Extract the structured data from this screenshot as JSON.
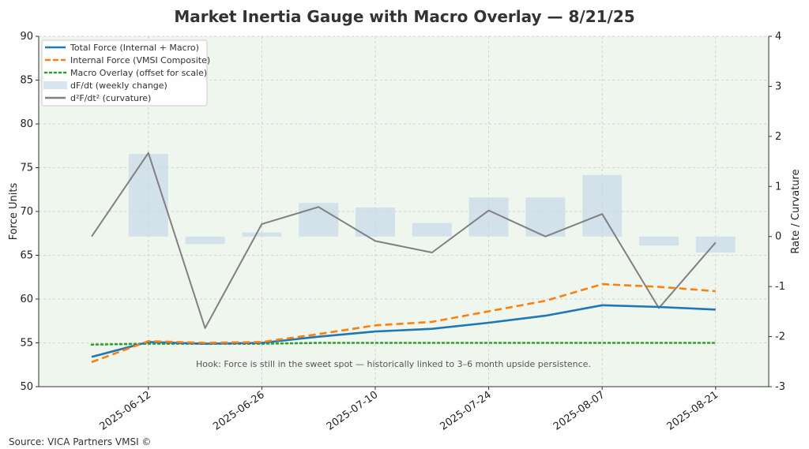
{
  "chart_data": {
    "type": "line",
    "title": "Market Inertia Gauge with Macro Overlay — 8/21/25",
    "ylabel": "Force Units",
    "y2label": "Rate / Curvature",
    "xlabel": "",
    "x": [
      "2025-06-05",
      "2025-06-12",
      "2025-06-19",
      "2025-06-26",
      "2025-07-03",
      "2025-07-10",
      "2025-07-17",
      "2025-07-24",
      "2025-07-31",
      "2025-08-07",
      "2025-08-14",
      "2025-08-21"
    ],
    "x_tick_labels": [
      "2025-06-12",
      "2025-06-26",
      "2025-07-10",
      "2025-07-24",
      "2025-08-07",
      "2025-08-21"
    ],
    "ylim": [
      50,
      90
    ],
    "y_ticks": [
      50,
      55,
      60,
      65,
      70,
      75,
      80,
      85,
      90
    ],
    "y2lim": [
      -3,
      4
    ],
    "y2_ticks": [
      -3,
      -2,
      -1,
      0,
      1,
      2,
      3,
      4
    ],
    "grid": true,
    "legend_position": "top-left",
    "series": [
      {
        "name": "Total Force (Internal + Macro)",
        "axis": "left",
        "style": "solid",
        "color": "#1f77b4",
        "values": [
          53.4,
          55.1,
          54.9,
          55.0,
          55.7,
          56.3,
          56.6,
          57.3,
          58.1,
          59.3,
          59.1,
          58.8
        ]
      },
      {
        "name": "Internal Force (VMSI Composite)",
        "axis": "left",
        "style": "dashed",
        "color": "#ff7f0e",
        "values": [
          52.8,
          55.2,
          55.0,
          55.1,
          56.0,
          57.0,
          57.4,
          58.6,
          59.8,
          61.7,
          61.4,
          60.9
        ]
      },
      {
        "name": "Macro Overlay (offset for scale)",
        "axis": "left",
        "style": "dotted",
        "color": "#2ca02c",
        "values": [
          54.8,
          54.9,
          54.9,
          54.9,
          55.0,
          55.0,
          55.0,
          55.0,
          55.0,
          55.0,
          55.0,
          55.0
        ]
      },
      {
        "name": "dF/dt (weekly change)",
        "axis": "right",
        "style": "bar",
        "color": "#c8d8e8",
        "values": [
          null,
          1.65,
          -0.15,
          0.08,
          0.67,
          0.58,
          0.27,
          0.78,
          0.78,
          1.23,
          -0.18,
          -0.32
        ]
      },
      {
        "name": "d²F/dt² (curvature)",
        "axis": "right",
        "style": "solid",
        "color": "#808080",
        "values": [
          0.0,
          1.67,
          -1.83,
          0.25,
          0.59,
          -0.09,
          -0.32,
          0.52,
          0.0,
          0.45,
          -1.43,
          -0.12
        ]
      }
    ],
    "annotations": [
      "Hook: Force is still in the sweet spot — historically linked to 3–6 month upside persistence."
    ]
  },
  "footer": {
    "source": "Source: VICA Partners VMSI ©"
  },
  "colors": {
    "background_panel": "#eef6ee",
    "grid": "#c8c8c8"
  }
}
